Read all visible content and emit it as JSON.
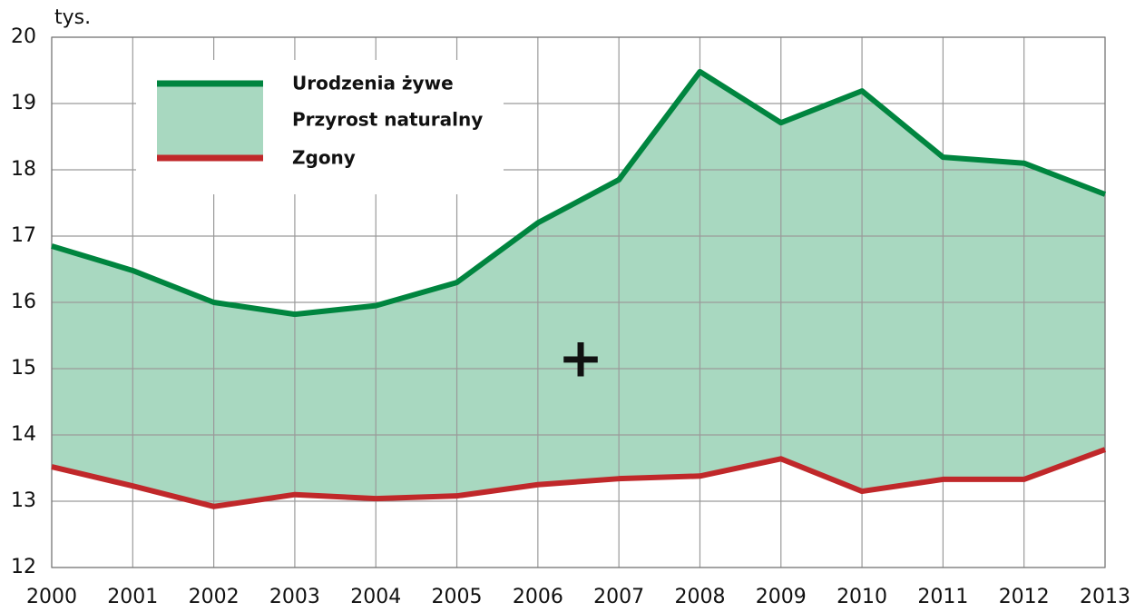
{
  "chart_data": {
    "type": "line",
    "y_label": "tys.",
    "annotation": "+",
    "categories": [
      "2000",
      "2001",
      "2002",
      "2003",
      "2004",
      "2005",
      "2006",
      "2007",
      "2008",
      "2009",
      "2010",
      "2011",
      "2012",
      "2013"
    ],
    "series": [
      {
        "name": "Urodzenia żywe",
        "color": "#00853f",
        "values": [
          16.85,
          16.48,
          16.0,
          15.82,
          15.95,
          16.3,
          17.2,
          17.85,
          19.48,
          18.71,
          19.19,
          18.19,
          18.1,
          17.63
        ]
      },
      {
        "name": "Zgony",
        "color": "#c0282a",
        "values": [
          13.52,
          13.23,
          12.92,
          13.1,
          13.04,
          13.08,
          13.25,
          13.34,
          13.38,
          13.64,
          13.15,
          13.33,
          13.33,
          13.78
        ]
      }
    ],
    "area": {
      "name": "Przyrost naturalny",
      "color": "#a8d8c0"
    },
    "ylim": [
      12,
      20
    ],
    "yticks": [
      12,
      13,
      14,
      15,
      16,
      17,
      18,
      19,
      20
    ],
    "grid": true
  }
}
